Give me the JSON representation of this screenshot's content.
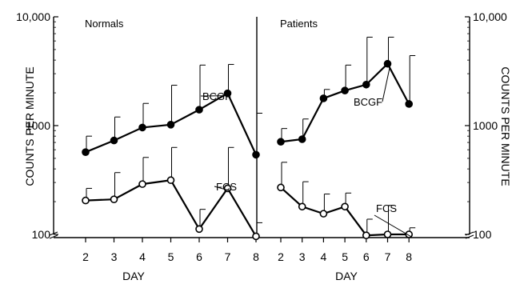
{
  "chart_data": [
    {
      "type": "line",
      "title": "Normals",
      "xlabel": "DAY",
      "ylabel": "COUNTS PER MINUTE",
      "y_scale": "log",
      "ylim": [
        100,
        10000
      ],
      "xlim": [
        1.5,
        8.5
      ],
      "x": [
        2,
        3,
        4,
        5,
        6,
        7,
        8
      ],
      "x_tick_labels": [
        "2",
        "3",
        "4",
        "5",
        "6",
        "7",
        "8"
      ],
      "y_tick_labels": [
        "10,000",
        "1000",
        "100"
      ],
      "series": [
        {
          "name": "BCGF",
          "marker": "filled-circle",
          "values": [
            570,
            730,
            960,
            1020,
            1400,
            1980,
            540
          ],
          "error_upper": [
            800,
            1200,
            1600,
            2350,
            3600,
            3650,
            1300
          ]
        },
        {
          "name": "FCS",
          "marker": "open-circle",
          "values": [
            205,
            210,
            290,
            315,
            112,
            265,
            96
          ],
          "error_upper": [
            265,
            370,
            510,
            630,
            170,
            630,
            128
          ]
        }
      ]
    },
    {
      "type": "line",
      "title": "Patients",
      "xlabel": "DAY",
      "ylabel": "COUNTS PER MINUTE",
      "y_scale": "log",
      "ylim": [
        100,
        10000
      ],
      "xlim": [
        1.5,
        8.5
      ],
      "x": [
        2,
        3,
        4,
        5,
        6,
        7,
        8
      ],
      "x_tick_labels": [
        "2",
        "3",
        "4",
        "5",
        "6",
        "7",
        "8"
      ],
      "y_tick_labels": [
        "10,000",
        "1000",
        "100"
      ],
      "series": [
        {
          "name": "BCGF",
          "marker": "filled-circle",
          "values": [
            710,
            750,
            1780,
            2100,
            2380,
            3700,
            1580
          ],
          "error_upper": [
            940,
            1150,
            2150,
            3600,
            6500,
            6500,
            4400
          ]
        },
        {
          "name": "FCS",
          "marker": "open-circle",
          "values": [
            270,
            180,
            155,
            180,
            98,
            100,
            100
          ],
          "error_upper": [
            460,
            305,
            235,
            240,
            138,
            185,
            115
          ]
        }
      ]
    }
  ]
}
